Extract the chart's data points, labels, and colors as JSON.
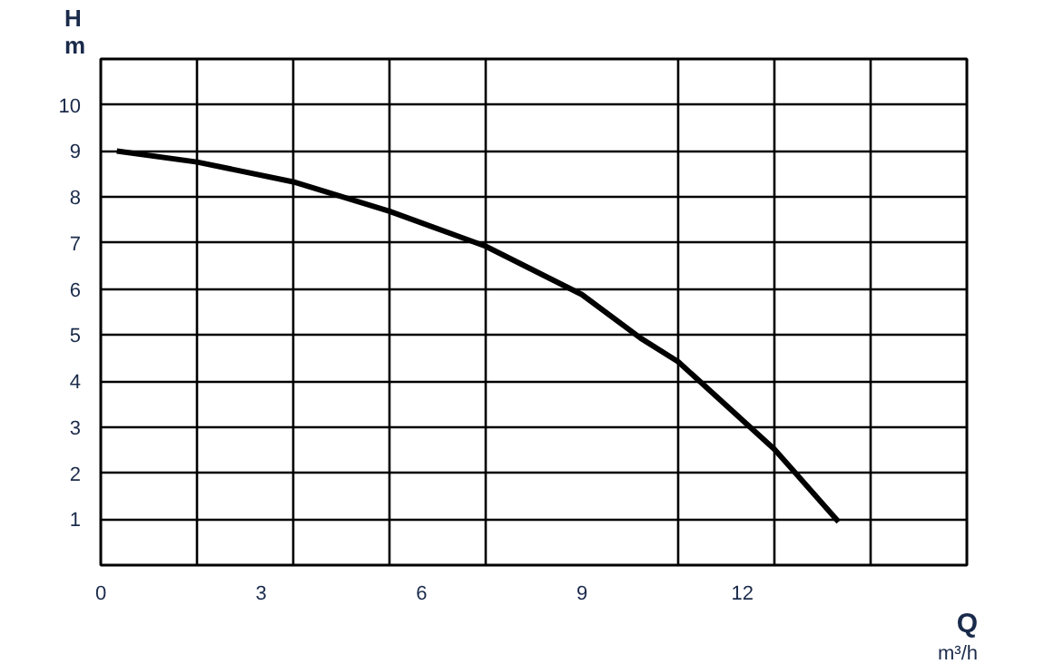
{
  "chart_data": {
    "type": "line",
    "xlabel": "Q\nm³/h",
    "ylabel": "H\nm",
    "x": [
      0.3,
      1.8,
      3.6,
      5.4,
      7.2,
      9.0,
      10.1,
      10.8,
      12.6,
      13.8
    ],
    "series": [
      {
        "color": "#000000",
        "values": [
          9.0,
          8.76,
          8.33,
          7.69,
          6.93,
          5.88,
          4.93,
          4.42,
          2.52,
          0.94
        ]
      }
    ],
    "xlim": [
      0,
      16.2
    ],
    "ylim": [
      0,
      11
    ],
    "xticks": [
      0,
      3,
      6,
      9,
      12,
      {
        "value": 1.8,
        "label": null
      },
      {
        "value": 3.6,
        "label": null
      },
      {
        "value": 5.4,
        "label": null
      },
      {
        "value": 7.2,
        "label": null
      },
      {
        "value": 10.8,
        "label": null
      },
      {
        "value": 12.6,
        "label": null
      },
      {
        "value": 14.4,
        "label": null
      }
    ],
    "yticks": [
      1,
      2,
      3,
      4,
      5,
      6,
      7,
      8,
      9,
      10
    ],
    "grid": true,
    "marker": "none",
    "line_style": "solid"
  }
}
